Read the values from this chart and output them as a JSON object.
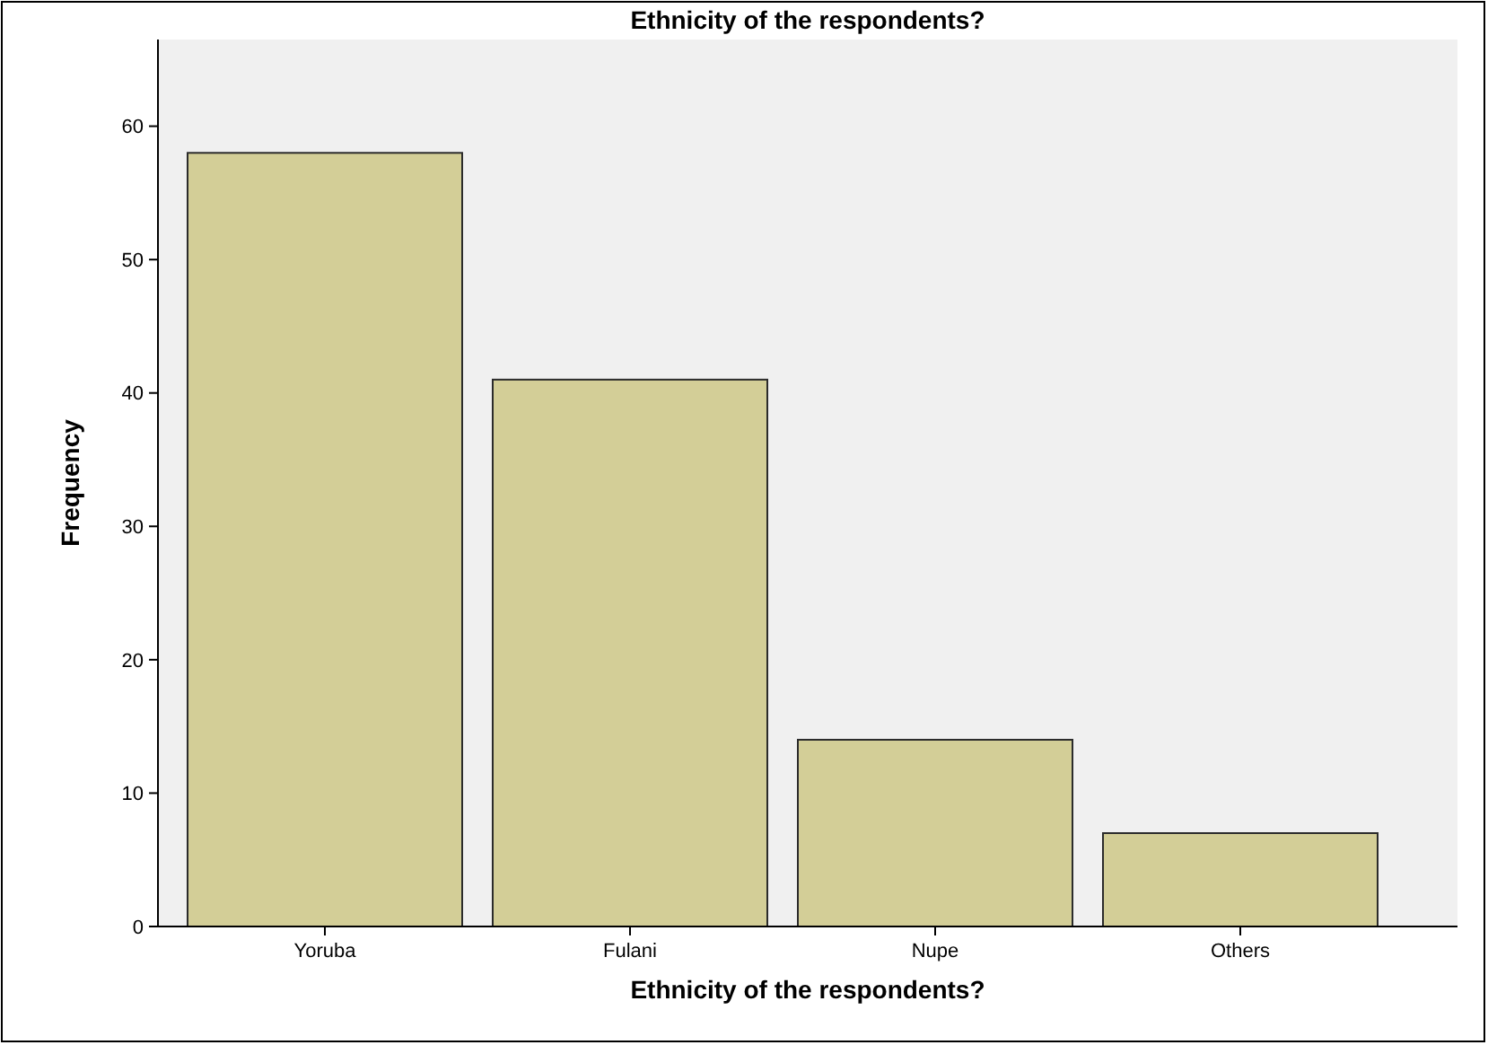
{
  "chart_data": {
    "type": "bar",
    "title": "Ethnicity  of the respondents?",
    "xlabel": "Ethnicity  of the respondents?",
    "ylabel": "Frequency",
    "categories": [
      "Yoruba",
      "Fulani",
      "Nupe",
      "Others"
    ],
    "values": [
      58,
      41,
      14,
      7
    ],
    "color": "#d3ce97",
    "ylim": [
      0,
      66.5
    ],
    "yticks": [
      0,
      10,
      20,
      30,
      40,
      50,
      60
    ],
    "grid": false
  }
}
